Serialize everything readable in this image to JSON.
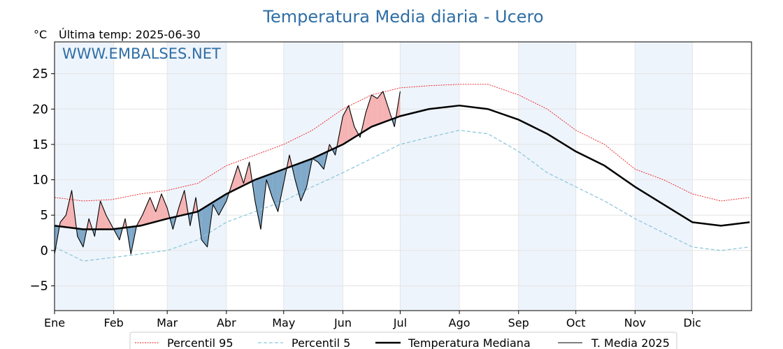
{
  "chart_data": {
    "type": "line",
    "title": "Temperatura Media diaria - Ucero",
    "unit_label": "°C",
    "last_temp_label": "Última temp: 2025-06-30",
    "watermark": "WWW.EMBALSES.NET",
    "ylim": [
      -8.5,
      29.5
    ],
    "yticks": [
      -5,
      0,
      5,
      10,
      15,
      20,
      25
    ],
    "ytick_labels": [
      "−5",
      "0",
      "5",
      "10",
      "15",
      "20",
      "25"
    ],
    "xlim": [
      0,
      365
    ],
    "month_starts": [
      0,
      31,
      59,
      90,
      120,
      151,
      181,
      212,
      243,
      273,
      304,
      334
    ],
    "month_labels": [
      "Ene",
      "Feb",
      "Mar",
      "Abr",
      "May",
      "Jun",
      "Jul",
      "Ago",
      "Sep",
      "Oct",
      "Nov",
      "Dic"
    ],
    "grid": true,
    "legend_position": "bottom-center",
    "colors": {
      "p95": "#e8191e",
      "p5": "#8ec8dc",
      "median": "#000000",
      "current": "#000000",
      "above_fill": "#f5b3b3",
      "below_fill": "#7fa8c9",
      "band": "#eef4fb"
    },
    "series": [
      {
        "name": "Percentil 95",
        "x": [
          0,
          15,
          30,
          45,
          59,
          75,
          90,
          105,
          120,
          135,
          151,
          166,
          181,
          196,
          212,
          227,
          243,
          258,
          273,
          288,
          304,
          319,
          334,
          349,
          364
        ],
        "y": [
          7.5,
          7.0,
          7.2,
          8.0,
          8.5,
          9.5,
          12.0,
          13.5,
          15.0,
          17.0,
          20.0,
          22.0,
          23.0,
          23.3,
          23.5,
          23.5,
          22.0,
          20.0,
          17.0,
          15.0,
          11.5,
          10.0,
          8.0,
          7.0,
          7.5
        ]
      },
      {
        "name": "Percentil 5",
        "x": [
          0,
          15,
          30,
          45,
          59,
          75,
          90,
          105,
          120,
          135,
          151,
          166,
          181,
          196,
          212,
          227,
          243,
          258,
          273,
          288,
          304,
          319,
          334,
          349,
          364
        ],
        "y": [
          0.5,
          -1.5,
          -1.0,
          -0.5,
          0.0,
          1.5,
          4.0,
          5.5,
          7.0,
          9.0,
          11.0,
          13.0,
          15.0,
          16.0,
          17.0,
          16.5,
          14.0,
          11.0,
          9.0,
          7.0,
          4.5,
          2.5,
          0.5,
          0.0,
          0.5
        ]
      },
      {
        "name": "Temperatura Mediana",
        "x": [
          0,
          15,
          30,
          45,
          59,
          75,
          90,
          105,
          120,
          135,
          151,
          166,
          181,
          196,
          212,
          227,
          243,
          258,
          273,
          288,
          304,
          319,
          334,
          349,
          364
        ],
        "y": [
          3.5,
          3.0,
          3.0,
          3.5,
          4.5,
          5.5,
          8.0,
          10.0,
          11.5,
          13.0,
          15.0,
          17.5,
          19.0,
          20.0,
          20.5,
          20.0,
          18.5,
          16.5,
          14.0,
          12.0,
          9.0,
          6.5,
          4.0,
          3.5,
          4.0
        ]
      },
      {
        "name": "T. Media 2025",
        "x": [
          0,
          3,
          6,
          9,
          12,
          15,
          18,
          21,
          24,
          27,
          31,
          34,
          37,
          40,
          43,
          46,
          50,
          53,
          56,
          59,
          62,
          65,
          68,
          71,
          74,
          77,
          80,
          83,
          86,
          90,
          93,
          96,
          99,
          102,
          105,
          108,
          111,
          114,
          117,
          120,
          123,
          126,
          129,
          132,
          135,
          138,
          141,
          144,
          147,
          151,
          154,
          157,
          160,
          163,
          166,
          169,
          172,
          175,
          178,
          181
        ],
        "y": [
          -0.5,
          4.0,
          5.0,
          8.5,
          2.0,
          0.5,
          4.5,
          2.0,
          7.0,
          5.0,
          3.0,
          1.5,
          4.5,
          -0.5,
          3.5,
          5.0,
          7.5,
          5.5,
          8.0,
          6.0,
          3.0,
          6.0,
          8.5,
          3.5,
          7.5,
          1.5,
          0.5,
          6.5,
          5.0,
          7.0,
          9.5,
          12.0,
          9.5,
          12.5,
          7.0,
          3.0,
          10.0,
          7.5,
          5.5,
          9.5,
          13.5,
          10.0,
          7.0,
          9.0,
          13.0,
          12.5,
          11.5,
          15.0,
          13.5,
          19.0,
          20.5,
          17.5,
          16.0,
          19.5,
          22.0,
          21.5,
          22.5,
          20.0,
          17.5,
          22.5
        ]
      }
    ]
  }
}
